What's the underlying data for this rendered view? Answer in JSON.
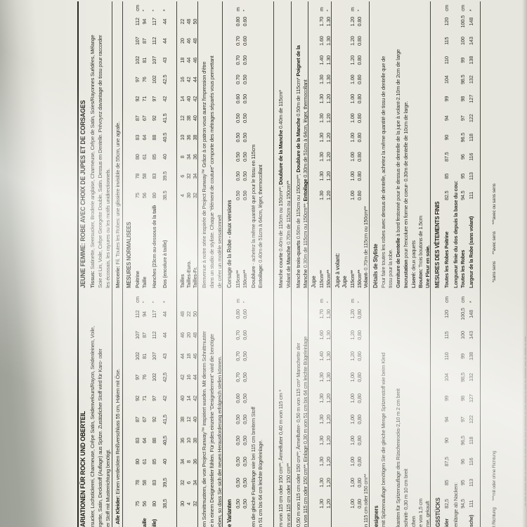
{
  "page": {
    "paper": "#edece5",
    "scanner_gray": "#9fa29a",
    "ink": "#1d1d17"
  },
  "german": {
    "header": "ARIATIONEN FÜR ROCK UND OBERTEIL",
    "fabric1": "rsucker, Lochstickerei, Charmeuse, Crêpe Satin, Seidenvelours/Rayon, Seidenleinen, Voile,",
    "fabric2": "rgette, Satin, Deckstoff (Auflage) aus Spitze. Zusätzlicher Stoff wird für Karo- oder",
    "fabric3": "er Stoff mit Musterrichtung benötigt.",
    "notions_segs": [
      [
        "r",
        ". "
      ],
      [
        "b",
        "Alle Kleider:"
      ],
      [
        "r",
        " Einen verdeckten Reißverschluss 55 cm, Haken mit Öse."
      ]
    ],
    "measure_rows": [
      {
        "label": "",
        "values": [
          "75",
          "78",
          "80",
          "83",
          "87",
          "92",
          "97",
          "102",
          "107",
          "112"
        ],
        "unit": "cm"
      },
      {
        "label": "aille",
        "values": [
          "56",
          "58",
          "61",
          "64",
          "67",
          "71",
          "76",
          "81",
          "87",
          "94"
        ],
        "unit": "”"
      },
      {
        "label": "ille)",
        "values": [
          "80",
          "83",
          "85",
          "88",
          "92",
          "97",
          "102",
          "107",
          "112",
          "117"
        ],
        "unit": "”"
      },
      {
        "label": "",
        "values": [
          "38,5",
          "39,5",
          "40",
          "40,5",
          "41,5",
          "42",
          "42,5",
          "43",
          "44",
          "44"
        ],
        "unit": "*"
      }
    ],
    "size_rows": [
      {
        "label": "",
        "values": [
          "30",
          "32",
          "34",
          "36",
          "38",
          "40",
          "42",
          "44",
          "46",
          "48"
        ],
        "unit": ""
      },
      {
        "label": "",
        "values": [
          "4",
          "6",
          "8",
          "10",
          "12",
          "14",
          "16",
          "18",
          "20",
          "22"
        ],
        "unit": ""
      },
      {
        "label": "",
        "values": [
          "32",
          "34",
          "36",
          "38",
          "40",
          "42",
          "44",
          "46",
          "48",
          "50"
        ],
        "unit": ""
      }
    ],
    "intro1": "en Schnittmustern, die von Project Runway™ inspiriert wurden. Mit diesem Schnittmuster",
    "intro2": "e in einem Designeratelier fühlen. Für jedes einzelne “Designelement” wird die benötigte",
    "intro3": "eben, so dass Sie sich der neuen Herausforderung erfolgreich stellen können.",
    "bodice_header": "e Varianten",
    "bodice_rows": [
      {
        "label": "",
        "values": [
          "0,50",
          "0,50",
          "0,50",
          "0,50",
          "0,50",
          "0,60",
          "0,70",
          "0,70",
          "0,70",
          "0,80"
        ],
        "unit": "m"
      },
      {
        "label": "",
        "values": [
          "0,50",
          "0,50",
          "0,50",
          "0,50",
          "0,50",
          "0,50",
          "0,50",
          "0,50",
          "0,60",
          "0,60"
        ],
        "unit": "”"
      }
    ],
    "lining": "en die gleiche Futterlänge wie bei 115 cm breitem Stoff",
    "interfacing": "n 51 cm bis 64 cm leichte Bügeleinlage.",
    "short_sleeve": "m von 115 cm oder 150 cm**; Ärmelfutter 0,40 m von 115 cm *",
    "sleeve_ruffle": "m von 115 cm oder 150 cm**",
    "three_quarter_1": "0,50 m von 115 cm oder 150 cm**; Ärmelfutter- 0,50 m von 115 cm* Manschette der",
    "three_quarter_2": "n von 115 cm oder 150 cm**; Einlage 0,30 m von 51 cm bis 64 cm leichte Bügeleinlage",
    "skirt_rows": [
      {
        "label": "",
        "values": [
          "1,30",
          "1,30",
          "1,30",
          "1,30",
          "1,30",
          "1,30",
          "1,30",
          "1,40",
          "1,60",
          "1,70"
        ],
        "unit": "m"
      },
      {
        "label": "",
        "values": [
          "1,20",
          "1,20",
          "1,20",
          "1,20",
          "1,20",
          "1,20",
          "1,30",
          "1,30",
          "1,30",
          "1,30"
        ],
        "unit": "”"
      }
    ],
    "ruffle_rows": [
      {
        "label": "",
        "values": [
          "1,00",
          "1,00",
          "1,00",
          "1,00",
          "1,00",
          "1,00",
          "1,00",
          "1,20",
          "1,20",
          "1,20"
        ],
        "unit": "m"
      },
      {
        "label": "",
        "values": [
          "0,80",
          "0,80",
          "0,80",
          "0,80",
          "0,80",
          "0,80",
          "0,80",
          "0,80",
          "0,80",
          "0,80"
        ],
        "unit": "”"
      }
    ],
    "ruffle_flounce": "n 115 cm oder 150 cm**",
    "details_header": "esigners",
    "detail1": "mit Spitzenauflage benötigen Sie die gleiche Menge Spitzenstoff wie beim Kleid",
    "detail3": "kanten für Spitzenauflage des Rüschenrocks-2,10 m 2 cm breit",
    "detail4": "schnitt- 0,30 m 10 cm breit",
    "detail5": "chen",
    "detail6": "e von 1,5 cm",
    "detail7": "me, gekauft",
    "finished_header": "GSSTÜCKS",
    "finished_bust": {
      "label": "ider",
      "values": [
        "82,5",
        "85",
        "87,5",
        "90",
        "94",
        "99",
        "104",
        "110",
        "115",
        "120"
      ],
      "unit": "cm"
    },
    "finished_length_label": "enlänge ab Nacken:",
    "finished_length": {
      "label": "",
      "values": [
        "94,5",
        "95",
        "96",
        "96,5",
        "97",
        "98",
        "98,5",
        "99",
        "100",
        "100,5"
      ],
      "unit": "cm"
    },
    "finished_width": {
      "label": "sche)",
      "values": [
        "111",
        "113",
        "116",
        "118",
        "122",
        "127",
        "132",
        "138",
        "143",
        "148"
      ],
      "unit": "*"
    },
    "footnote": "t Richtung      ***mit oder ohne Richtung"
  },
  "french": {
    "header": "JEUNE FEMME: ROBE AVEC CHOIX DE JUPES ET DE CORSAGES",
    "fabric1_segs": [
      [
        "b",
        "Tissus:"
      ],
      [
        "r",
        " Satinette, Seersucker, Broderie anglaise, Charmeuse, Crêpe de Satin, Soies/Rayonnes Suédées, Mélange"
      ]
    ],
    "fabric2": "Soie et Lin, Voile, Crêpe Georgette Double, Satin. Dessus en Dentelle. Prévoyez davantage de tissu pour raccorder",
    "fabric3": "les écossais, les rayures ou les motifs unidirectionnels.",
    "notions_segs": [
      [
        "b",
        "Mercerie:"
      ],
      [
        "r",
        " Fil. Toutes les Robes: une glissière invisible de 55cm, une agrafe."
      ]
    ],
    "mesures_header": "MESURES NORMALISEES",
    "measure_rows": [
      {
        "label": "Poitrine",
        "values": [
          "75",
          "78",
          "80",
          "83",
          "87",
          "92",
          "97",
          "102",
          "107",
          "112"
        ],
        "unit": "cm"
      },
      {
        "label": "Taille",
        "values": [
          "56",
          "58",
          "61",
          "64",
          "67",
          "71",
          "76",
          "81",
          "87",
          "94"
        ],
        "unit": "”"
      },
      {
        "label": "Hanches (23cm au-dessous de la taille)",
        "values": [
          "80",
          "83",
          "85",
          "88",
          "92",
          "97",
          "102",
          "107",
          "112",
          "117"
        ],
        "unit": "”"
      },
      {
        "label": "Dos (encolure à taille)",
        "values": [
          "38.5",
          "39.5",
          "40",
          "40.5",
          "41.5",
          "42",
          "42.5",
          "43",
          "44",
          "44"
        ],
        "unit": "*"
      }
    ],
    "size_rows": [
      {
        "label": "Tailles",
        "values": [
          "4",
          "6",
          "8",
          "10",
          "12",
          "14",
          "16",
          "18",
          "20",
          "22"
        ],
        "unit": ""
      },
      {
        "label": "Tailles-Euro.",
        "values": [
          "30",
          "32",
          "34",
          "36",
          "38",
          "40",
          "42",
          "44",
          "46",
          "48"
        ],
        "unit": ""
      },
      {
        "label": "Tailles-Fr.",
        "values": [
          "32",
          "34",
          "36",
          "38",
          "40",
          "42",
          "44",
          "46",
          "48",
          "50"
        ],
        "unit": ""
      }
    ],
    "intro1": "Bienvenue à notre série inspirée de Project Runway™ Grâce à ce patron vous aurez l'impression d'être",
    "intro2": "dans un studio de styliste. Chaque “élément de couture” comporte des métrages séparés vous permettant",
    "intro3": "de créer un modèle sensationnel!",
    "bodice_header": "Corsage de la Robe - deux versions",
    "bodice_rows": [
      {
        "label": "115cm**",
        "values": [
          "0.50",
          "0.50",
          "0.50",
          "0.50",
          "0.50",
          "0.60",
          "0.70",
          "0.70",
          "0.70",
          "0.80"
        ],
        "unit": "m"
      },
      {
        "label": "150cm**",
        "values": [
          "0.50",
          "0.50",
          "0.50",
          "0.50",
          "0.50",
          "0.50",
          "0.50",
          "0.50",
          "0.60",
          "0.60"
        ],
        "unit": "”"
      }
    ],
    "lining_segs": [
      [
        "b",
        "Doublure"
      ],
      [
        "r",
        " - achetez la même quantité que pour le tissu en 115cm"
      ]
    ],
    "interfacing_segs": [
      [
        "b",
        "Entoilage:"
      ],
      [
        "r",
        " 0.40m de 51cm à 64cm, léger, thermocollant"
      ]
    ],
    "short_sleeve_segs": [
      [
        "b",
        "Manche courte"
      ],
      [
        "r",
        " 0.40m de 115cm ou 150cm**; "
      ],
      [
        "b",
        "Doublure de la Manche"
      ],
      [
        "r",
        " 0.40m de 115cm*"
      ]
    ],
    "sleeve_ruffle_segs": [
      [
        "b",
        "Volant de Manche"
      ],
      [
        "r",
        " 0.70m de 115cm ou 150cm**"
      ]
    ],
    "three_q1_segs": [
      [
        "b",
        "Manche trois-quarts"
      ],
      [
        "r",
        " 0.50m de 115cm ou 150cm**; "
      ],
      [
        "b",
        "Doublure de la Manche"
      ],
      [
        "r",
        " 0.50m de 115cm* "
      ],
      [
        "b",
        "Poignet de la"
      ]
    ],
    "three_q2_segs": [
      [
        "b",
        "Manche"
      ],
      [
        "r",
        " 0.30m de 115cm ou 150cm**; "
      ],
      [
        "b",
        "Entoilage"
      ],
      [
        "r",
        " 0.30m de 51cm à 64cm, léger, thermocollant"
      ]
    ],
    "skirt_header": "Jupe",
    "skirt_rows": [
      {
        "label": "115cm**",
        "values": [
          "1.30",
          "1.30",
          "1.30",
          "1.30",
          "1.30",
          "1.30",
          "1.30",
          "1.40",
          "1.60",
          "1.70"
        ],
        "unit": "m"
      },
      {
        "label": "150cm**",
        "values": [
          "1.20",
          "1.20",
          "1.20",
          "1.20",
          "1.20",
          "1.20",
          "1.30",
          "1.30",
          "1.30",
          "1.30"
        ],
        "unit": "”"
      }
    ],
    "ruffle_header": "Jupe à volant:",
    "ruffle_sub": "Jupe",
    "ruffle_rows": [
      {
        "label": "115cm**",
        "values": [
          "1.00",
          "1.00",
          "1.00",
          "1.00",
          "1.00",
          "1.00",
          "1.00",
          "1.20",
          "1.20",
          "1.20"
        ],
        "unit": "m"
      },
      {
        "label": "150cm**",
        "values": [
          "0.80",
          "0.80",
          "0.80",
          "0.80",
          "0.80",
          "0.80",
          "0.80",
          "0.80",
          "0.80",
          "0.80"
        ],
        "unit": "”"
      }
    ],
    "flounce_segs": [
      [
        "b",
        "Volant-"
      ],
      [
        "r",
        " 0.70m de 115cm ou 150cm**"
      ]
    ],
    "details_header": "Détails de Styliste",
    "detail1": "Pour faire toutes les robes avec dessus de dentelle, achetez la même quantité de tissu de dentelle que de",
    "detail2": "tissu pour la robe.",
    "detail3_segs": [
      [
        "b",
        "Garniture de Dentelle"
      ],
      [
        "r",
        " à bord festonné pour le dessus de dentelle de la jupe à volant-2.10m de 2cm de large"
      ]
    ],
    "detail4_segs": [
      [
        "b",
        "Incrustation"
      ],
      [
        "r",
        " pour l'encolure en forme de coeur- 0.30m de dentelle de 10cm de large."
      ]
    ],
    "detail5_segs": [
      [
        "b",
        "Liseré:"
      ],
      [
        "r",
        " deux paquets"
      ]
    ],
    "detail6_segs": [
      [
        "b",
        "Bouton:"
      ],
      [
        "r",
        " Trois boutons de 1.5cm"
      ]
    ],
    "detail7_segs": [
      [
        "b",
        "Une Fleur en soie."
      ]
    ],
    "finished_header": "MESURES DES VÊTEMENTS FINIS",
    "finished_bust": {
      "label": "Toutes les Robes Poitrine",
      "values": [
        "82.5",
        "85",
        "87.5",
        "90",
        "94",
        "99",
        "104",
        "110",
        "115",
        "120"
      ],
      "unit": "cm"
    },
    "finished_length_label": "Longueur finie du dos depuis la base du cou:",
    "finished_length": {
      "label": "Toutes les Robes",
      "values": [
        "94.5",
        "95",
        "96",
        "96.5",
        "97",
        "98",
        "98.5",
        "99",
        "100",
        "100.5"
      ],
      "unit": "cm"
    },
    "finished_width": {
      "label": "Largeur de la Robe (sans volant)",
      "values": [
        "111",
        "113",
        "116",
        "118",
        "122",
        "127",
        "132",
        "138",
        "143",
        "148"
      ],
      "unit": "*"
    },
    "footnote": "*sans sens      **avec sens      ***avec ou sans sens"
  },
  "edge": {
    "cut_marks": "– ––  –  –––  ––  –   ––––  –  ––  –––   ––  –  ––––  –  ––   –––  –  ––  –  –––– –– –  –––  –  ––"
  }
}
